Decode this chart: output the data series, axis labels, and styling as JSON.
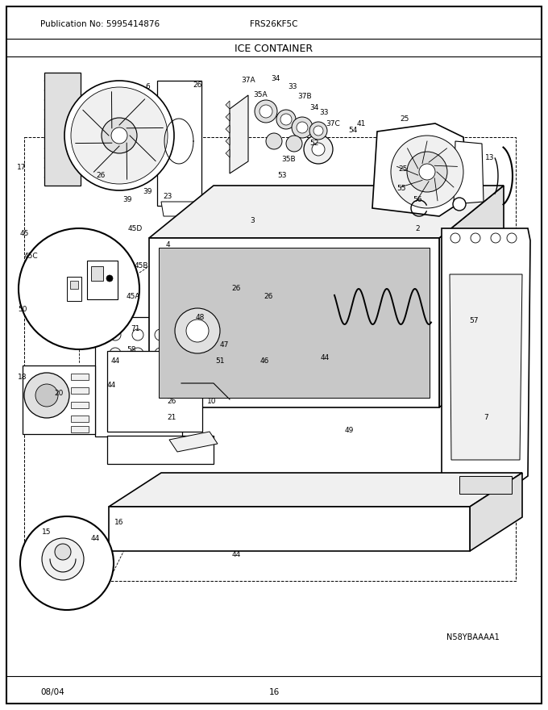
{
  "pub_no": "Publication No: 5995414876",
  "model": "FRS26KF5C",
  "title": "ICE CONTAINER",
  "diagram_id": "N58YBAAAA1",
  "date": "08/04",
  "page": "16",
  "bg_color": "#ffffff",
  "fig_width": 6.8,
  "fig_height": 8.8,
  "dpi": 100,
  "header_fontsize": 7.5,
  "title_fontsize": 9,
  "footer_fontsize": 7.5,
  "label_fontsize": 6.5,
  "diagram_id_fontsize": 7,
  "labels": [
    [
      "6",
      183,
      108
    ],
    [
      "26",
      245,
      106
    ],
    [
      "37A",
      308,
      100
    ],
    [
      "34",
      342,
      98
    ],
    [
      "33",
      363,
      108
    ],
    [
      "37B",
      378,
      120
    ],
    [
      "34",
      390,
      133
    ],
    [
      "33",
      402,
      140
    ],
    [
      "37C",
      413,
      153
    ],
    [
      "41",
      448,
      153
    ],
    [
      "25",
      502,
      148
    ],
    [
      "17",
      27,
      208
    ],
    [
      "26",
      125,
      218
    ],
    [
      "35A",
      323,
      118
    ],
    [
      "35B",
      358,
      198
    ],
    [
      "52",
      390,
      178
    ],
    [
      "54",
      438,
      162
    ],
    [
      "53",
      350,
      218
    ],
    [
      "13",
      608,
      195
    ],
    [
      "25",
      500,
      210
    ],
    [
      "55",
      498,
      233
    ],
    [
      "56",
      518,
      248
    ],
    [
      "39",
      183,
      238
    ],
    [
      "39",
      158,
      248
    ],
    [
      "23",
      208,
      243
    ],
    [
      "3",
      313,
      273
    ],
    [
      "2",
      518,
      283
    ],
    [
      "45",
      30,
      290
    ],
    [
      "45D",
      168,
      283
    ],
    [
      "45C",
      38,
      318
    ],
    [
      "45B",
      175,
      330
    ],
    [
      "4",
      208,
      303
    ],
    [
      "50",
      28,
      383
    ],
    [
      "45A",
      165,
      368
    ],
    [
      "26",
      293,
      358
    ],
    [
      "26",
      333,
      368
    ],
    [
      "71",
      168,
      408
    ],
    [
      "48",
      248,
      393
    ],
    [
      "57",
      588,
      398
    ],
    [
      "58",
      163,
      433
    ],
    [
      "44",
      143,
      448
    ],
    [
      "47",
      278,
      428
    ],
    [
      "51",
      273,
      448
    ],
    [
      "46",
      328,
      448
    ],
    [
      "44",
      403,
      443
    ],
    [
      "18",
      28,
      468
    ],
    [
      "20",
      73,
      488
    ],
    [
      "44",
      138,
      478
    ],
    [
      "26",
      213,
      498
    ],
    [
      "10",
      263,
      498
    ],
    [
      "21",
      213,
      518
    ],
    [
      "49",
      433,
      533
    ],
    [
      "7",
      603,
      518
    ],
    [
      "15",
      58,
      660
    ],
    [
      "16",
      148,
      648
    ],
    [
      "44",
      118,
      668
    ],
    [
      "44",
      293,
      688
    ]
  ]
}
